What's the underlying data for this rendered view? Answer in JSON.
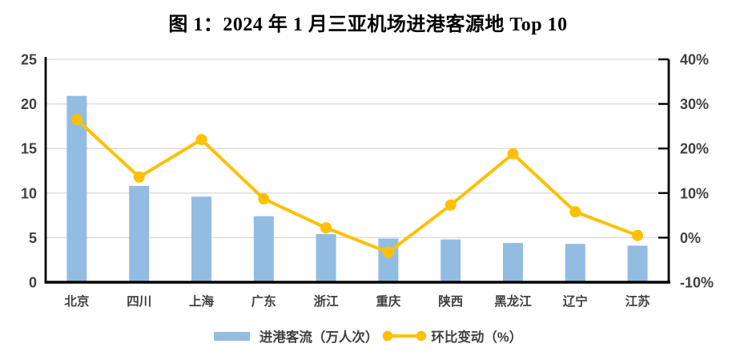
{
  "title": "图 1：2024 年 1 月三亚机场进港客源地 Top 10",
  "chart_data": {
    "type": "bar+line-combo",
    "categories": [
      "北京",
      "四川",
      "上海",
      "广东",
      "浙江",
      "重庆",
      "陕西",
      "黑龙江",
      "辽宁",
      "江苏"
    ],
    "series": [
      {
        "name": "进港客流（万人次）",
        "type": "bar",
        "axis": "left",
        "color": "#92BCE2",
        "values": [
          20.9,
          10.8,
          9.6,
          7.4,
          5.4,
          4.9,
          4.8,
          4.4,
          4.3,
          4.1
        ]
      },
      {
        "name": "环比变动（%）",
        "type": "line",
        "axis": "right",
        "color": "#FFC000",
        "values": [
          26.5,
          13.6,
          22.0,
          8.7,
          2.2,
          -3.3,
          7.3,
          18.8,
          5.8,
          0.5
        ]
      }
    ],
    "left_axis": {
      "min": 0,
      "max": 25,
      "step": 5,
      "tick_labels_top_down": [
        "25",
        "20",
        "15",
        "10",
        "5",
        "0"
      ]
    },
    "right_axis": {
      "min": -10,
      "max": 40,
      "step": 10,
      "tick_labels_top_down": [
        "40%",
        "30%",
        "20%",
        "10%",
        "0%",
        "-10%"
      ]
    },
    "grid": true,
    "legend_position": "bottom"
  },
  "colors": {
    "bar": "#92BCE2",
    "line": "#FFC000",
    "gridline": "#D9D9D9",
    "axis_line": "#000000",
    "tick_label": "#404040",
    "background": "#FFFFFF"
  }
}
